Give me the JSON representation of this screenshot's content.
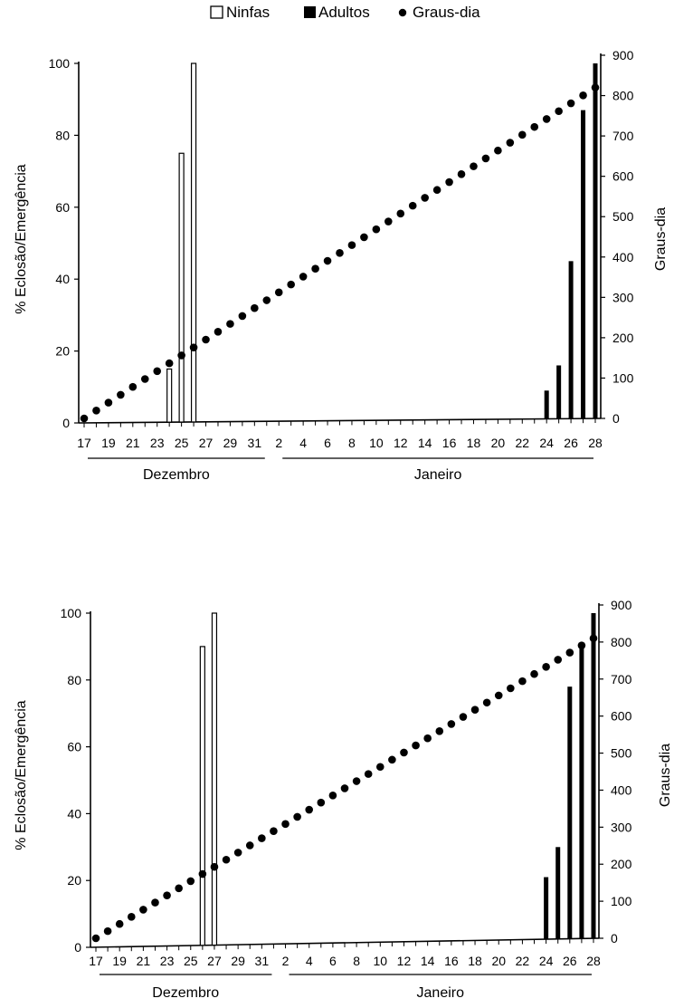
{
  "legend": {
    "ninfas": "Ninfas",
    "adultos": "Adultos",
    "graus_dia": "Graus-dia"
  },
  "colors": {
    "ink": "#000000",
    "paper": "#ffffff"
  },
  "chart_data": [
    {
      "type": "bar",
      "x_ticks": [
        "17",
        "19",
        "21",
        "23",
        "25",
        "27",
        "29",
        "31",
        "2",
        "4",
        "6",
        "8",
        "10",
        "12",
        "14",
        "16",
        "18",
        "20",
        "22",
        "24",
        "26",
        "28"
      ],
      "months": [
        "Dezembro",
        "Janeiro"
      ],
      "ylabel": "% Eclosão/Emergência",
      "y2label": "Graus-dia",
      "ylim": [
        0,
        100
      ],
      "y_ticks": [
        "0",
        "20",
        "40",
        "60",
        "80",
        "100"
      ],
      "y2lim": [
        0,
        900
      ],
      "y2_ticks": [
        "0",
        "100",
        "200",
        "300",
        "400",
        "500",
        "600",
        "700",
        "800",
        "900"
      ],
      "series": [
        {
          "name": "Ninfas",
          "type": "bar",
          "points": [
            [
              7,
              15
            ],
            [
              8,
              75
            ],
            [
              9,
              100
            ]
          ]
        },
        {
          "name": "Adultos",
          "type": "bar",
          "points": [
            [
              38,
              9
            ],
            [
              39,
              16
            ],
            [
              40,
              45
            ],
            [
              41,
              87
            ],
            [
              42,
              100
            ]
          ]
        },
        {
          "name": "Graus-dia",
          "type": "dotted-line",
          "y_axis": "right",
          "points": [
            [
              0,
              0
            ],
            [
              42,
              820
            ]
          ]
        }
      ]
    },
    {
      "type": "bar",
      "x_ticks": [
        "17",
        "19",
        "21",
        "23",
        "25",
        "27",
        "29",
        "31",
        "2",
        "4",
        "6",
        "8",
        "10",
        "12",
        "14",
        "16",
        "18",
        "20",
        "22",
        "24",
        "26",
        "28"
      ],
      "months": [
        "Dezembro",
        "Janeiro"
      ],
      "ylabel": "% Eclosão/Emergência",
      "y2label": "Graus-dia",
      "ylim": [
        0,
        100
      ],
      "y_ticks": [
        "0",
        "20",
        "40",
        "60",
        "80",
        "100"
      ],
      "y2lim": [
        0,
        900
      ],
      "y2_ticks": [
        "0",
        "100",
        "200",
        "300",
        "400",
        "500",
        "600",
        "700",
        "800",
        "900"
      ],
      "series": [
        {
          "name": "Ninfas",
          "type": "bar",
          "points": [
            [
              9,
              90
            ],
            [
              10,
              100
            ]
          ]
        },
        {
          "name": "Adultos",
          "type": "bar",
          "points": [
            [
              38,
              21
            ],
            [
              39,
              30
            ],
            [
              40,
              78
            ],
            [
              41,
              90
            ],
            [
              42,
              100
            ]
          ]
        },
        {
          "name": "Graus-dia",
          "type": "dotted-line",
          "y_axis": "right",
          "points": [
            [
              0,
              0
            ],
            [
              42,
              810
            ]
          ]
        }
      ]
    }
  ]
}
